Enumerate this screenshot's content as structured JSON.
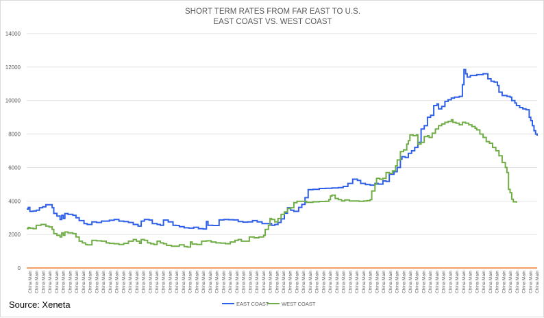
{
  "chart_data": {
    "type": "line",
    "title": [
      "SHORT TERM RATES FROM FAR EAST TO U.S.",
      "EAST COAST VS. WEST COAST"
    ],
    "xlabel": "",
    "ylabel": "",
    "ylim": [
      0,
      14000
    ],
    "yticks": [
      0,
      2000,
      4000,
      6000,
      8000,
      10000,
      12000,
      14000
    ],
    "x_tick_label": "China Main",
    "x_tick_count": 77,
    "grid": true,
    "legend_position": "bottom",
    "source": "Source: Xeneta",
    "colors": {
      "east": "#2e5fe8",
      "west": "#70ad47",
      "zero": "#ed7d31",
      "grid": "#d9d9d9"
    },
    "series": [
      {
        "name": "EAST COAST",
        "color": "#2e5fe8",
        "values": [
          [
            0,
            3520
          ],
          [
            1,
            3620
          ],
          [
            2,
            3380
          ],
          [
            4,
            3400
          ],
          [
            6,
            3450
          ],
          [
            8,
            3600
          ],
          [
            10,
            3650
          ],
          [
            12,
            3780
          ],
          [
            14,
            3780
          ],
          [
            16,
            3600
          ],
          [
            17,
            3260
          ],
          [
            19,
            3100
          ],
          [
            21,
            2900
          ],
          [
            22,
            3150
          ],
          [
            23,
            2950
          ],
          [
            24,
            3250
          ],
          [
            26,
            3200
          ],
          [
            29,
            3150
          ],
          [
            31,
            3000
          ],
          [
            33,
            2830
          ],
          [
            36,
            2650
          ],
          [
            38,
            2600
          ],
          [
            41,
            2750
          ],
          [
            44,
            2720
          ],
          [
            47,
            2800
          ],
          [
            52,
            2850
          ],
          [
            55,
            2900
          ],
          [
            58,
            2800
          ],
          [
            61,
            2770
          ],
          [
            64,
            2720
          ],
          [
            67,
            2600
          ],
          [
            70,
            2500
          ],
          [
            72,
            2800
          ],
          [
            74,
            2900
          ],
          [
            77,
            2860
          ],
          [
            79,
            2650
          ],
          [
            82,
            2600
          ],
          [
            84,
            2550
          ],
          [
            86,
            2860
          ],
          [
            89,
            2750
          ],
          [
            92,
            2550
          ],
          [
            94,
            2540
          ],
          [
            96,
            2470
          ],
          [
            99,
            2400
          ],
          [
            102,
            2380
          ],
          [
            105,
            2430
          ],
          [
            108,
            2350
          ],
          [
            111,
            2330
          ],
          [
            113,
            2780
          ],
          [
            114,
            2550
          ],
          [
            117,
            2540
          ],
          [
            121,
            2870
          ],
          [
            124,
            2900
          ],
          [
            127,
            2880
          ],
          [
            130,
            2870
          ],
          [
            133,
            2770
          ],
          [
            136,
            2740
          ],
          [
            139,
            2750
          ],
          [
            142,
            2830
          ],
          [
            145,
            2750
          ],
          [
            148,
            2650
          ],
          [
            151,
            2650
          ],
          [
            154,
            2550
          ],
          [
            156,
            2600
          ],
          [
            158,
            2720
          ],
          [
            160,
            2930
          ],
          [
            162,
            3270
          ],
          [
            164,
            3600
          ],
          [
            166,
            3450
          ],
          [
            168,
            3380
          ],
          [
            171,
            3620
          ],
          [
            173,
            3800
          ],
          [
            175,
            4200
          ],
          [
            177,
            4680
          ],
          [
            180,
            4700
          ],
          [
            184,
            4750
          ],
          [
            188,
            4760
          ],
          [
            192,
            4780
          ],
          [
            196,
            4800
          ],
          [
            199,
            4870
          ],
          [
            202,
            5050
          ],
          [
            205,
            5300
          ],
          [
            208,
            5230
          ],
          [
            210,
            5050
          ],
          [
            213,
            4980
          ],
          [
            216,
            4950
          ],
          [
            219,
            5050
          ],
          [
            221,
            5010
          ],
          [
            224,
            5200
          ],
          [
            226,
            5170
          ],
          [
            228,
            5600
          ],
          [
            231,
            5750
          ],
          [
            233,
            6000
          ],
          [
            235,
            6500
          ],
          [
            236,
            6650
          ],
          [
            238,
            6600
          ],
          [
            240,
            6850
          ],
          [
            242,
            7000
          ],
          [
            244,
            7200
          ],
          [
            246,
            7500
          ],
          [
            248,
            8300
          ],
          [
            250,
            8500
          ],
          [
            252,
            9000
          ],
          [
            254,
            9120
          ],
          [
            256,
            9700
          ],
          [
            258,
            9800
          ],
          [
            259,
            9500
          ],
          [
            261,
            9650
          ],
          [
            263,
            9950
          ],
          [
            265,
            10050
          ],
          [
            267,
            10150
          ],
          [
            269,
            10200
          ],
          [
            272,
            10250
          ],
          [
            274,
            10950
          ],
          [
            275,
            11850
          ],
          [
            276,
            11600
          ],
          [
            277,
            11400
          ],
          [
            279,
            11500
          ],
          [
            283,
            11550
          ],
          [
            287,
            11600
          ],
          [
            290,
            11300
          ],
          [
            292,
            11150
          ],
          [
            294,
            11100
          ],
          [
            296,
            10900
          ],
          [
            297,
            10500
          ],
          [
            299,
            10300
          ],
          [
            302,
            10250
          ],
          [
            304,
            10200
          ],
          [
            305,
            10000
          ],
          [
            307,
            9850
          ],
          [
            308,
            9700
          ],
          [
            310,
            9580
          ],
          [
            312,
            9500
          ],
          [
            314,
            9450
          ],
          [
            316,
            9000
          ],
          [
            317,
            8800
          ],
          [
            318,
            8500
          ],
          [
            319,
            8200
          ],
          [
            320,
            8000
          ],
          [
            321,
            7900
          ]
        ]
      },
      {
        "name": "WEST COAST",
        "color": "#70ad47",
        "values": [
          [
            0,
            2350
          ],
          [
            1,
            2420
          ],
          [
            2,
            2380
          ],
          [
            4,
            2350
          ],
          [
            6,
            2550
          ],
          [
            9,
            2600
          ],
          [
            12,
            2500
          ],
          [
            14,
            2450
          ],
          [
            16,
            2300
          ],
          [
            17,
            2050
          ],
          [
            19,
            1950
          ],
          [
            21,
            1850
          ],
          [
            22,
            2100
          ],
          [
            23,
            1950
          ],
          [
            24,
            2150
          ],
          [
            26,
            2100
          ],
          [
            29,
            2050
          ],
          [
            31,
            1850
          ],
          [
            33,
            1600
          ],
          [
            35,
            1500
          ],
          [
            37,
            1400
          ],
          [
            38,
            1380
          ],
          [
            41,
            1650
          ],
          [
            44,
            1620
          ],
          [
            47,
            1600
          ],
          [
            50,
            1500
          ],
          [
            52,
            1470
          ],
          [
            55,
            1450
          ],
          [
            58,
            1400
          ],
          [
            61,
            1470
          ],
          [
            64,
            1600
          ],
          [
            67,
            1700
          ],
          [
            69,
            1600
          ],
          [
            71,
            1470
          ],
          [
            72,
            1700
          ],
          [
            74,
            1650
          ],
          [
            76,
            1500
          ],
          [
            78,
            1450
          ],
          [
            80,
            1400
          ],
          [
            82,
            1600
          ],
          [
            84,
            1500
          ],
          [
            86,
            1450
          ],
          [
            88,
            1350
          ],
          [
            91,
            1300
          ],
          [
            94,
            1300
          ],
          [
            96,
            1380
          ],
          [
            99,
            1280
          ],
          [
            101,
            1250
          ],
          [
            103,
            1550
          ],
          [
            104,
            1430
          ],
          [
            107,
            1400
          ],
          [
            110,
            1600
          ],
          [
            113,
            1620
          ],
          [
            116,
            1550
          ],
          [
            119,
            1500
          ],
          [
            122,
            1480
          ],
          [
            125,
            1450
          ],
          [
            128,
            1550
          ],
          [
            131,
            1650
          ],
          [
            133,
            1700
          ],
          [
            135,
            1600
          ],
          [
            137,
            1600
          ],
          [
            140,
            1850
          ],
          [
            143,
            1800
          ],
          [
            146,
            1850
          ],
          [
            149,
            1950
          ],
          [
            150,
            2300
          ],
          [
            152,
            2550
          ],
          [
            153,
            2950
          ],
          [
            154,
            2900
          ],
          [
            156,
            2750
          ],
          [
            158,
            2950
          ],
          [
            160,
            3200
          ],
          [
            162,
            3350
          ],
          [
            164,
            3550
          ],
          [
            166,
            3600
          ],
          [
            168,
            3900
          ],
          [
            170,
            3980
          ],
          [
            173,
            3980
          ],
          [
            176,
            3920
          ],
          [
            180,
            3950
          ],
          [
            184,
            3970
          ],
          [
            188,
            3980
          ],
          [
            190,
            4080
          ],
          [
            191,
            4300
          ],
          [
            192,
            4350
          ],
          [
            194,
            4150
          ],
          [
            196,
            4080
          ],
          [
            198,
            4000
          ],
          [
            200,
            4060
          ],
          [
            203,
            4000
          ],
          [
            206,
            4000
          ],
          [
            209,
            3980
          ],
          [
            212,
            4000
          ],
          [
            214,
            4020
          ],
          [
            216,
            4080
          ],
          [
            217,
            4600
          ],
          [
            219,
            5000
          ],
          [
            220,
            5350
          ],
          [
            222,
            5300
          ],
          [
            224,
            5350
          ],
          [
            226,
            5700
          ],
          [
            228,
            5650
          ],
          [
            230,
            5800
          ],
          [
            232,
            6100
          ],
          [
            233,
            6450
          ],
          [
            235,
            6950
          ],
          [
            237,
            7050
          ],
          [
            239,
            7400
          ],
          [
            240,
            7600
          ],
          [
            241,
            7950
          ],
          [
            243,
            7900
          ],
          [
            245,
            7950
          ],
          [
            246,
            7400
          ],
          [
            248,
            7500
          ],
          [
            250,
            7850
          ],
          [
            252,
            7900
          ],
          [
            253,
            7800
          ],
          [
            255,
            8050
          ],
          [
            257,
            8300
          ],
          [
            259,
            8500
          ],
          [
            261,
            8600
          ],
          [
            263,
            8700
          ],
          [
            265,
            8750
          ],
          [
            267,
            8850
          ],
          [
            268,
            8700
          ],
          [
            270,
            8650
          ],
          [
            272,
            8550
          ],
          [
            274,
            8700
          ],
          [
            276,
            8650
          ],
          [
            278,
            8550
          ],
          [
            280,
            8450
          ],
          [
            282,
            8350
          ],
          [
            283,
            8250
          ],
          [
            285,
            8000
          ],
          [
            287,
            7800
          ],
          [
            289,
            7550
          ],
          [
            291,
            7450
          ],
          [
            293,
            7200
          ],
          [
            295,
            7000
          ],
          [
            297,
            6700
          ],
          [
            299,
            6300
          ],
          [
            301,
            6000
          ],
          [
            302,
            5700
          ],
          [
            303,
            4700
          ],
          [
            304,
            4500
          ],
          [
            305,
            4100
          ],
          [
            306,
            3950
          ],
          [
            308,
            3900
          ]
        ]
      }
    ],
    "x_range": [
      0,
      321
    ]
  }
}
